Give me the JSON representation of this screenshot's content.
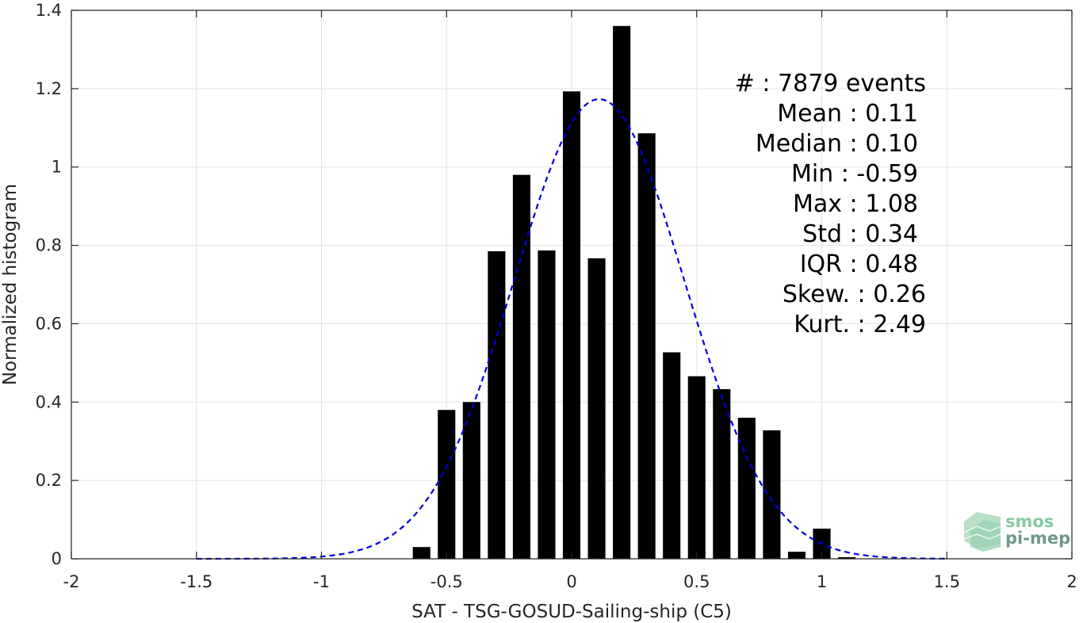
{
  "chart_data": {
    "type": "bar",
    "xlabel": "SAT - TSG-GOSUD-Sailing-ship (C5)",
    "ylabel": "Normalized histogram",
    "xlim": [
      -2,
      2
    ],
    "ylim": [
      0,
      1.4
    ],
    "xticks": [
      -2,
      -1.5,
      -1,
      -0.5,
      0,
      0.5,
      1,
      1.5,
      2
    ],
    "xtick_labels": [
      "-2",
      "-1.5",
      "-1",
      "-0.5",
      "0",
      "0.5",
      "1",
      "1.5",
      "2"
    ],
    "yticks": [
      0,
      0.2,
      0.4,
      0.6,
      0.8,
      1,
      1.2,
      1.4
    ],
    "ytick_labels": [
      "0",
      "0.2",
      "0.4",
      "0.6",
      "0.8",
      "1",
      "1.2",
      "1.4"
    ],
    "grid": true,
    "bin_width": 0.1,
    "bins": [
      {
        "x": -0.6,
        "value": 0.03
      },
      {
        "x": -0.5,
        "value": 0.38
      },
      {
        "x": -0.4,
        "value": 0.4
      },
      {
        "x": -0.3,
        "value": 0.785
      },
      {
        "x": -0.2,
        "value": 0.98
      },
      {
        "x": -0.1,
        "value": 0.787
      },
      {
        "x": 0.0,
        "value": 1.193
      },
      {
        "x": 0.1,
        "value": 0.767
      },
      {
        "x": 0.2,
        "value": 1.36
      },
      {
        "x": 0.3,
        "value": 1.086
      },
      {
        "x": 0.4,
        "value": 0.527
      },
      {
        "x": 0.5,
        "value": 0.466
      },
      {
        "x": 0.6,
        "value": 0.433
      },
      {
        "x": 0.7,
        "value": 0.36
      },
      {
        "x": 0.8,
        "value": 0.328
      },
      {
        "x": 0.9,
        "value": 0.018
      },
      {
        "x": 1.0,
        "value": 0.077
      },
      {
        "x": 1.1,
        "value": 0.004
      }
    ],
    "fit_curve": {
      "style": "dashed",
      "color": "#0000dd",
      "mean": 0.11,
      "std": 0.34,
      "x_range": [
        -1.5,
        1.5
      ]
    },
    "annotation_lines": [
      "#  : 7879 events",
      "Mean : 0.11",
      "Median : 0.10",
      "Min : -0.59",
      "Max : 1.08",
      "Std : 0.34",
      "IQR : 0.48",
      "Skew. : 0.26",
      "Kurt. : 2.49"
    ],
    "bar_color": "#000000"
  },
  "logo": {
    "line1": "smos",
    "line2": "pi-mep",
    "color1": "#86c9a3",
    "color2": "#6e9a88"
  }
}
